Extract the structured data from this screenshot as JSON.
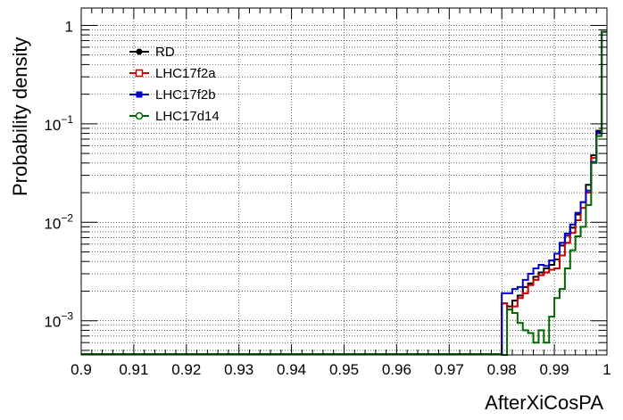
{
  "chart_data": {
    "type": "line",
    "drawstyle": "steps",
    "xlabel": "AfterXiCosPA",
    "ylabel": "Probability density",
    "xlim": [
      0.9,
      1.0
    ],
    "ylim": [
      0.00045,
      1.5
    ],
    "yscale": "log",
    "grid": true,
    "legend_position": "top-left",
    "x_tick_labels": [
      "0.9",
      "0.91",
      "0.92",
      "0.93",
      "0.94",
      "0.95",
      "0.96",
      "0.97",
      "0.98",
      "0.99",
      "1"
    ],
    "x_ticks": [
      0.9,
      0.91,
      0.92,
      0.93,
      0.94,
      0.95,
      0.96,
      0.97,
      0.98,
      0.99,
      1.0
    ],
    "y_ticks": [
      {
        "value": 1,
        "base": "1",
        "exp": ""
      },
      {
        "value": 0.1,
        "base": "10",
        "exp": "−1"
      },
      {
        "value": 0.01,
        "base": "10",
        "exp": "−2"
      },
      {
        "value": 0.001,
        "base": "10",
        "exp": "−3"
      }
    ],
    "bin_edges": [
      0.98,
      0.981,
      0.982,
      0.983,
      0.984,
      0.985,
      0.986,
      0.987,
      0.988,
      0.989,
      0.99,
      0.991,
      0.992,
      0.993,
      0.994,
      0.995,
      0.996,
      0.997,
      0.998,
      0.999,
      1.0
    ],
    "series": [
      {
        "name": "RD",
        "color": "#000000",
        "marker": "filled-circle",
        "values": [
          0.0015,
          0.0014,
          0.0016,
          0.0018,
          0.0022,
          0.0024,
          0.0028,
          0.0031,
          0.0034,
          0.0037,
          0.0042,
          0.0058,
          0.0073,
          0.0088,
          0.012,
          0.016,
          0.024,
          0.048,
          0.085,
          0.86
        ]
      },
      {
        "name": "LHC17f2a",
        "color": "#cc0000",
        "marker": "open-square",
        "values": [
          0.0015,
          0.0013,
          0.0014,
          0.0017,
          0.0019,
          0.0023,
          0.0026,
          0.0029,
          0.0031,
          0.0033,
          0.0034,
          0.0046,
          0.0062,
          0.0078,
          0.0105,
          0.014,
          0.02,
          0.045,
          0.08,
          0.86
        ]
      },
      {
        "name": "LHC17f2b",
        "color": "#0000cc",
        "marker": "filled-square",
        "values": [
          0.0019,
          0.0019,
          0.0021,
          0.0022,
          0.0026,
          0.003,
          0.0034,
          0.0037,
          0.0036,
          0.0041,
          0.0048,
          0.0062,
          0.0077,
          0.0095,
          0.0125,
          0.016,
          0.021,
          0.041,
          0.082,
          0.86
        ]
      },
      {
        "name": "LHC17d14",
        "color": "#006600",
        "marker": "open-circle",
        "values": [
          0.00045,
          0.0013,
          0.0012,
          0.00095,
          0.0008,
          0.00075,
          0.0006,
          0.0008,
          0.0006,
          0.0011,
          0.0017,
          0.0021,
          0.0034,
          0.0052,
          0.0072,
          0.009,
          0.015,
          0.04,
          0.075,
          0.86
        ]
      }
    ]
  }
}
